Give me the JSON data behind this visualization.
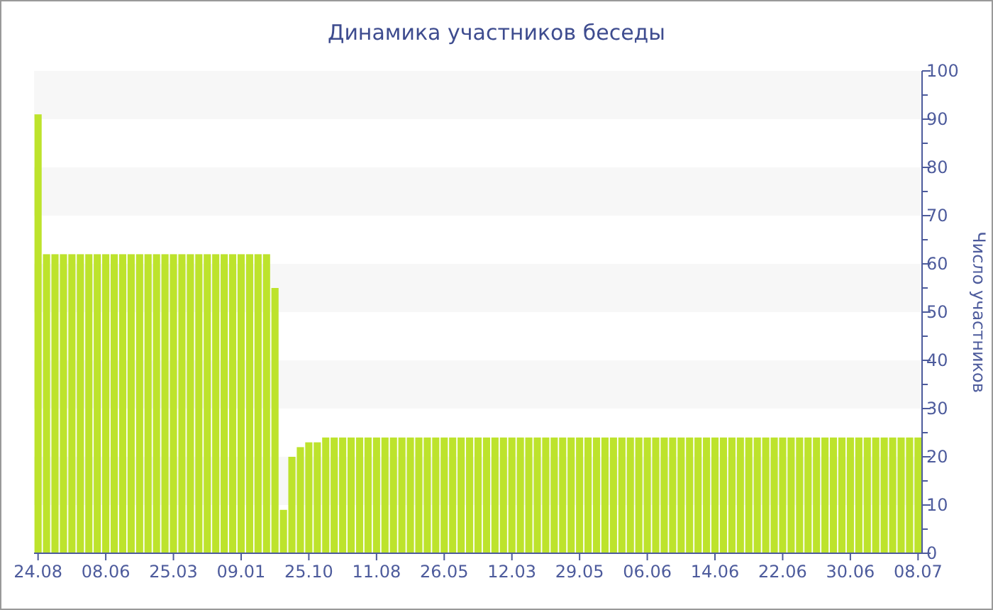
{
  "chart_data": {
    "type": "bar",
    "title": "Динамика участников беседы",
    "ylabel": "Число участников",
    "categories": [
      "24.08",
      null,
      null,
      null,
      null,
      null,
      null,
      null,
      "08.06",
      null,
      null,
      null,
      null,
      null,
      null,
      null,
      "25.03",
      null,
      null,
      null,
      null,
      null,
      null,
      null,
      "09.01",
      null,
      null,
      null,
      null,
      null,
      null,
      null,
      "25.10",
      null,
      null,
      null,
      null,
      null,
      null,
      null,
      "11.08",
      null,
      null,
      null,
      null,
      null,
      null,
      null,
      "26.05",
      null,
      null,
      null,
      null,
      null,
      null,
      null,
      "12.03",
      null,
      null,
      null,
      null,
      null,
      null,
      null,
      "29.05",
      null,
      null,
      null,
      null,
      null,
      null,
      null,
      "06.06",
      null,
      null,
      null,
      null,
      null,
      null,
      null,
      "14.06",
      null,
      null,
      null,
      null,
      null,
      null,
      null,
      "22.06",
      null,
      null,
      null,
      null,
      null,
      null,
      null,
      "30.06",
      null,
      null,
      null,
      null,
      null,
      null,
      null,
      "08.07"
    ],
    "values": [
      91,
      62,
      62,
      62,
      62,
      62,
      62,
      62,
      62,
      62,
      62,
      62,
      62,
      62,
      62,
      62,
      62,
      62,
      62,
      62,
      62,
      62,
      62,
      62,
      62,
      62,
      62,
      62,
      55,
      9,
      20,
      22,
      23,
      23,
      24,
      24,
      24,
      24,
      24,
      24,
      24,
      24,
      24,
      24,
      24,
      24,
      24,
      24,
      24,
      24,
      24,
      24,
      24,
      24,
      24,
      24,
      24,
      24,
      24,
      24,
      24,
      24,
      24,
      24,
      24,
      24,
      24,
      24,
      24,
      24,
      24,
      24,
      24,
      24,
      24,
      24,
      24,
      24,
      24,
      24,
      24,
      24,
      24,
      24,
      24,
      24,
      24,
      24,
      24,
      24,
      24,
      24,
      24,
      24,
      24,
      24,
      24,
      24,
      24,
      24,
      24,
      24,
      24,
      24,
      24
    ],
    "color": "#bde32c",
    "ylim": [
      0,
      100
    ],
    "yticks": [
      0,
      {
        "value": 5,
        "label": null
      },
      10,
      {
        "value": 15,
        "label": null
      },
      20,
      {
        "value": 25,
        "label": null
      },
      30,
      {
        "value": 35,
        "label": null
      },
      40,
      {
        "value": 45,
        "label": null
      },
      50,
      {
        "value": 55,
        "label": null
      },
      60,
      {
        "value": 65,
        "label": null
      },
      70,
      {
        "value": 75,
        "label": null
      },
      80,
      {
        "value": 85,
        "label": null
      },
      90,
      {
        "value": 95,
        "label": null
      },
      100
    ],
    "bands": [
      {
        "axis": "y",
        "from": 10,
        "to": 20,
        "color": "#f7f7f7"
      },
      {
        "axis": "y",
        "from": 30,
        "to": 40,
        "color": "#f7f7f7"
      },
      {
        "axis": "y",
        "from": 50,
        "to": 60,
        "color": "#f7f7f7"
      },
      {
        "axis": "y",
        "from": 70,
        "to": 80,
        "color": "#f7f7f7"
      },
      {
        "axis": "y",
        "from": 90,
        "to": 100,
        "color": "#f7f7f7"
      }
    ]
  }
}
